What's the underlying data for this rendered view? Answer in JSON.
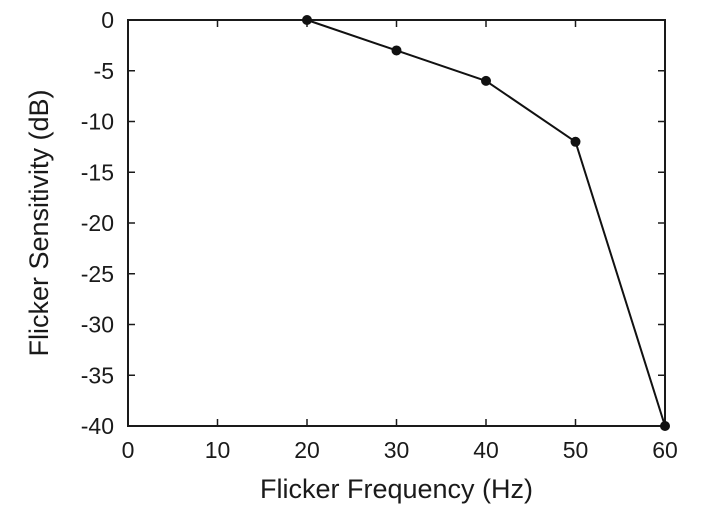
{
  "chart_data": {
    "type": "line",
    "title": "",
    "xlabel": "Flicker Frequency (Hz)",
    "ylabel": "Flicker Sensitivity (dB)",
    "xlim": [
      0,
      60
    ],
    "ylim": [
      -40,
      0
    ],
    "xticks": [
      0,
      10,
      20,
      30,
      40,
      50,
      60
    ],
    "yticks": [
      0,
      -5,
      -10,
      -15,
      -20,
      -25,
      -30,
      -35,
      -40
    ],
    "xtick_labels": [
      "0",
      "10",
      "20",
      "30",
      "40",
      "50",
      "60"
    ],
    "ytick_labels": [
      "0",
      "-5",
      "-10",
      "-15",
      "-20",
      "-25",
      "-30",
      "-35",
      "-40"
    ],
    "grid": false,
    "series": [
      {
        "x": [
          20,
          30,
          40,
          50,
          60
        ],
        "y": [
          0,
          -3,
          -6,
          -12,
          -40
        ],
        "color": "#111111",
        "marker": "circle"
      }
    ]
  }
}
